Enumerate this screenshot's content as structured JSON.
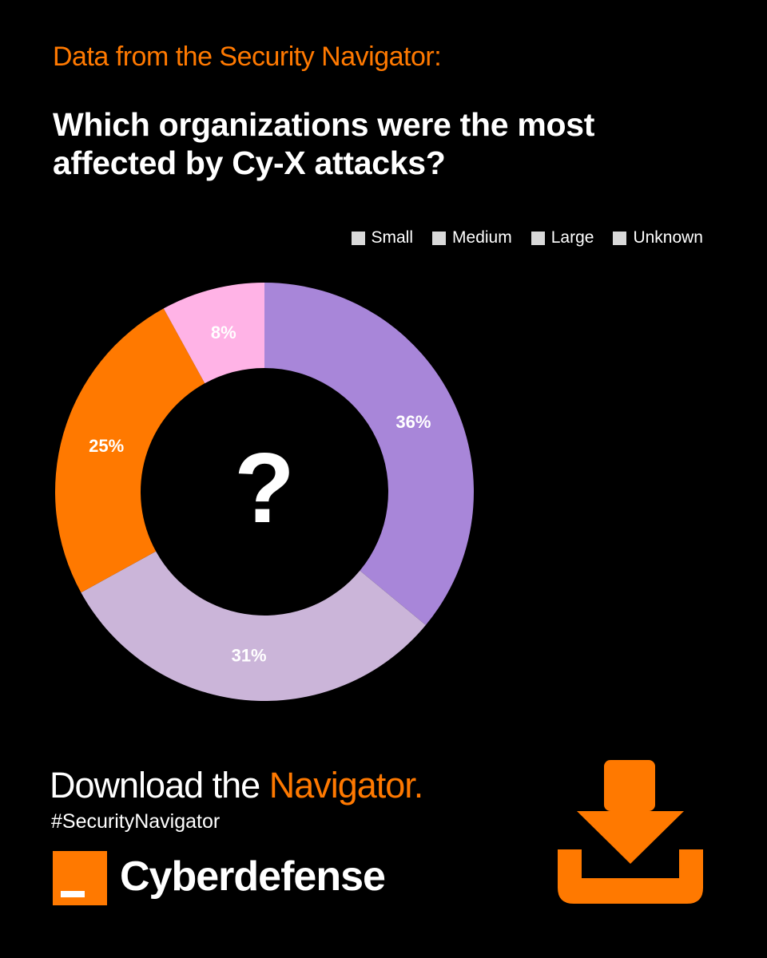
{
  "eyebrow": "Data from the Security Navigator:",
  "headline": "Which organizations were the most affected by Cy-X attacks?",
  "center_mark": "?",
  "cta": {
    "prefix": "Download the ",
    "accent": "Navigator."
  },
  "hashtag": "#SecurityNavigator",
  "brand": {
    "name": "Cyberdefense",
    "logo": "orange-square-logo"
  },
  "download_icon": "download-icon",
  "colors": {
    "accent": "#ff7900",
    "background": "#000000",
    "text": "#ffffff"
  },
  "chart_data": {
    "type": "pie",
    "donut": true,
    "legend_position": "top-right",
    "legend": [
      "Small",
      "Medium",
      "Large",
      "Unknown"
    ],
    "slices": [
      {
        "value": 36,
        "label": "36%",
        "color": "#a886d9"
      },
      {
        "value": 31,
        "label": "31%",
        "color": "#cbb5d9"
      },
      {
        "value": 25,
        "label": "25%",
        "color": "#ff7900"
      },
      {
        "value": 8,
        "label": "8%",
        "color": "#ffb3e6"
      }
    ]
  }
}
